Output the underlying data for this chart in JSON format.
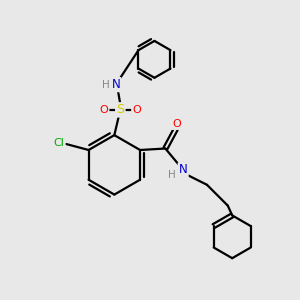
{
  "bg_color": "#e8e8e8",
  "bond_color": "#000000",
  "atom_colors": {
    "N": "#0000cc",
    "O": "#ff0000",
    "S": "#cccc00",
    "Cl": "#00aa00",
    "H": "#888888",
    "C": "#000000"
  },
  "bond_width": 1.6,
  "figsize": [
    3.0,
    3.0
  ],
  "dpi": 100,
  "xlim": [
    0,
    10
  ],
  "ylim": [
    0,
    10
  ]
}
